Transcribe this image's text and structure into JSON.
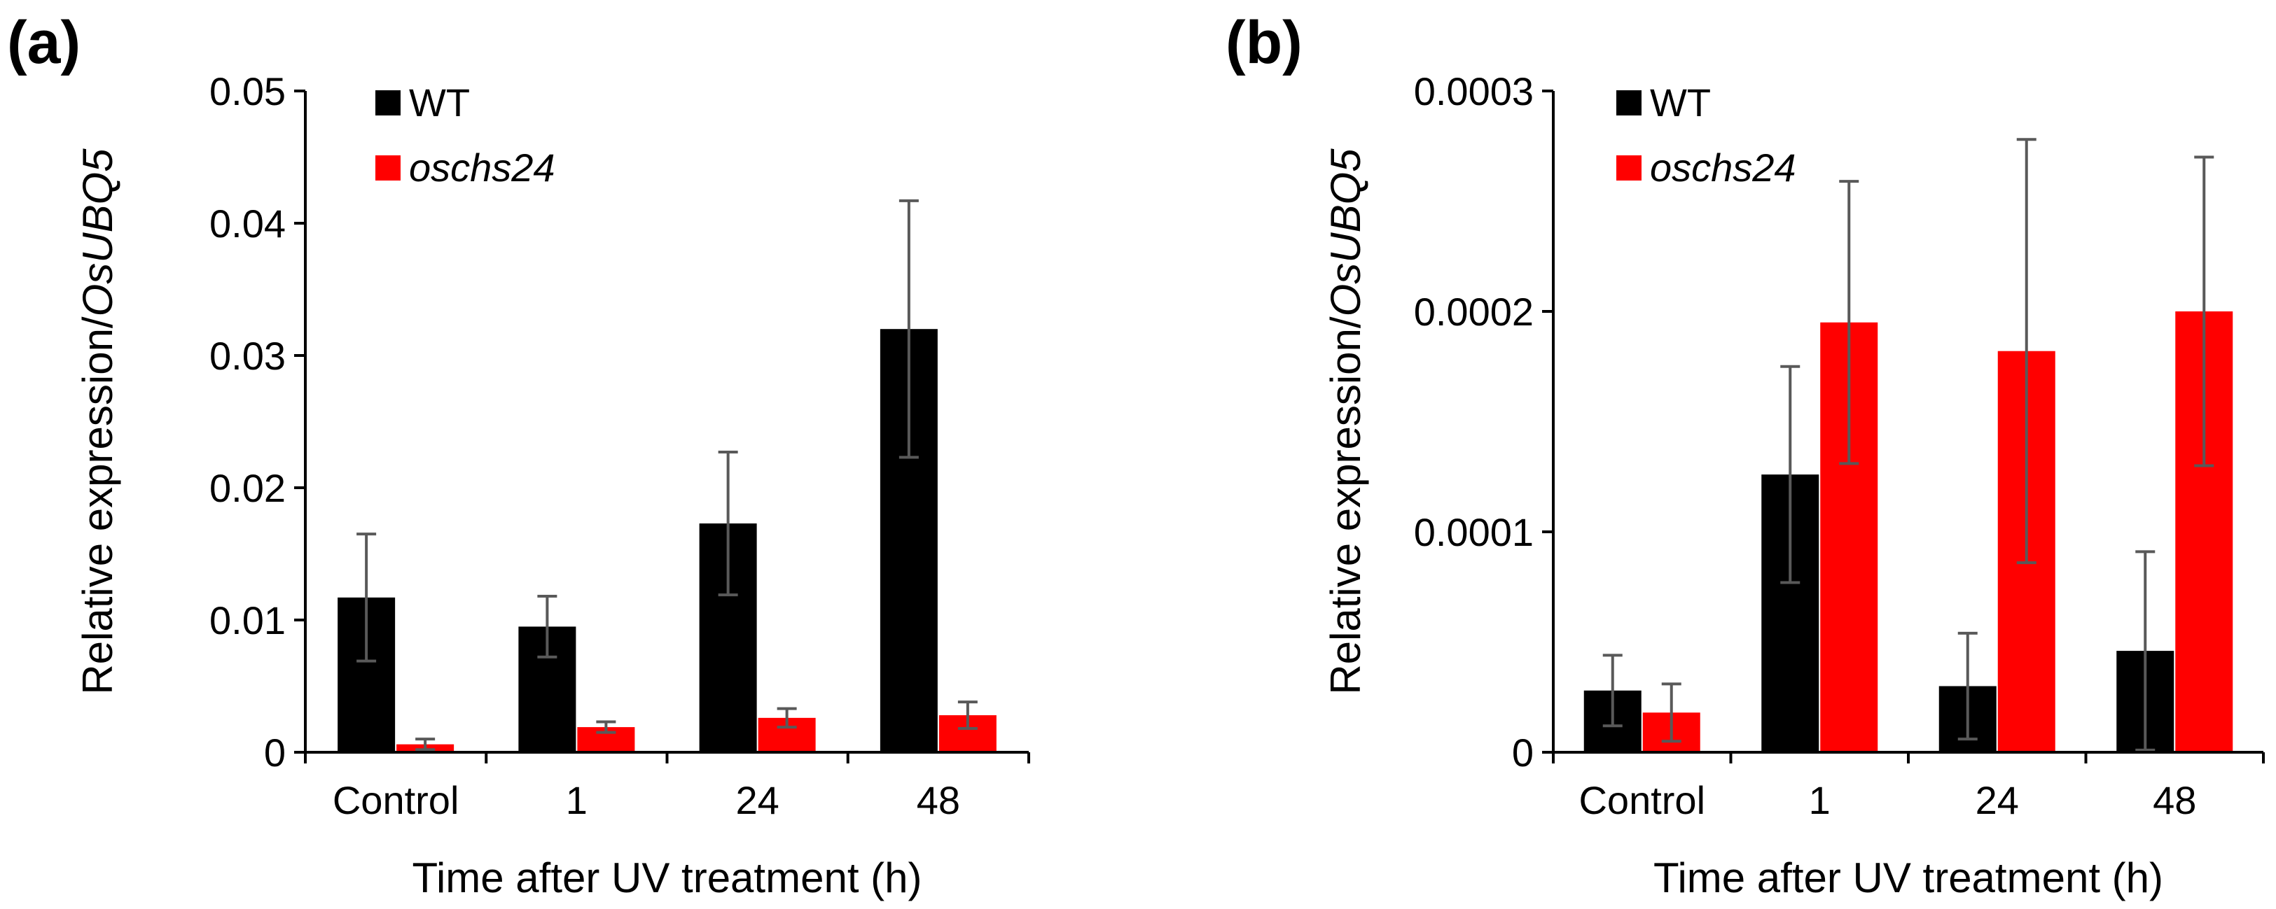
{
  "figure": {
    "colors": {
      "WT": "#000000",
      "oschs24": "#ff0000",
      "error_bar": "#595959",
      "axis": "#000000"
    }
  },
  "chart_data": [
    {
      "type": "bar",
      "panel_label": "(a)",
      "categories": [
        "Control",
        "1",
        "24",
        "48"
      ],
      "series": [
        {
          "name": "WT",
          "values": [
            0.0117,
            0.0095,
            0.0173,
            0.032
          ],
          "errors": [
            0.0048,
            0.0023,
            0.0054,
            0.0097
          ]
        },
        {
          "name": "oschs24",
          "values": [
            0.0006,
            0.0019,
            0.0026,
            0.0028
          ],
          "errors": [
            0.0004,
            0.0004,
            0.0007,
            0.001
          ]
        }
      ],
      "xlabel": "Time after UV treatment (h)",
      "ylabel": {
        "plain": "Relative expression/",
        "italic": "OsUBQ5"
      },
      "ylim": [
        0,
        0.05
      ],
      "yticks": [
        "0",
        "0.01",
        "0.02",
        "0.03",
        "0.04",
        "0.05"
      ],
      "legend": {
        "position": "top-left",
        "entries": [
          "WT",
          "oschs24"
        ]
      },
      "grid": false
    },
    {
      "type": "bar",
      "panel_label": "(b)",
      "categories": [
        "Control",
        "1",
        "24",
        "48"
      ],
      "series": [
        {
          "name": "WT",
          "values": [
            2.8e-05,
            0.000126,
            3e-05,
            4.6e-05
          ],
          "errors": [
            1.6e-05,
            4.9e-05,
            2.4e-05,
            4.5e-05
          ]
        },
        {
          "name": "oschs24",
          "values": [
            1.8e-05,
            0.000195,
            0.000182,
            0.0002
          ],
          "errors": [
            1.3e-05,
            6.4e-05,
            9.6e-05,
            7e-05
          ]
        }
      ],
      "xlabel": "Time after UV treatment (h)",
      "ylabel": {
        "plain": "Relative expression/",
        "italic": "OsUBQ5"
      },
      "ylim": [
        0,
        0.0003
      ],
      "yticks": [
        "0",
        "0.0001",
        "0.0002",
        "0.0003"
      ],
      "legend": {
        "position": "top-left",
        "entries": [
          "WT",
          "oschs24"
        ]
      },
      "grid": false
    }
  ]
}
